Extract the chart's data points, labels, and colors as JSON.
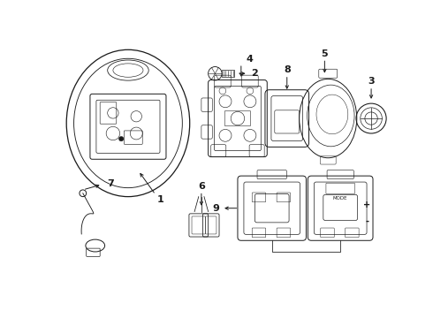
{
  "bg_color": "#ffffff",
  "line_color": "#1a1a1a",
  "lw": 0.7,
  "figw": 4.9,
  "figh": 3.6,
  "dpi": 100,
  "xlim": [
    0,
    490
  ],
  "ylim": [
    0,
    360
  ]
}
